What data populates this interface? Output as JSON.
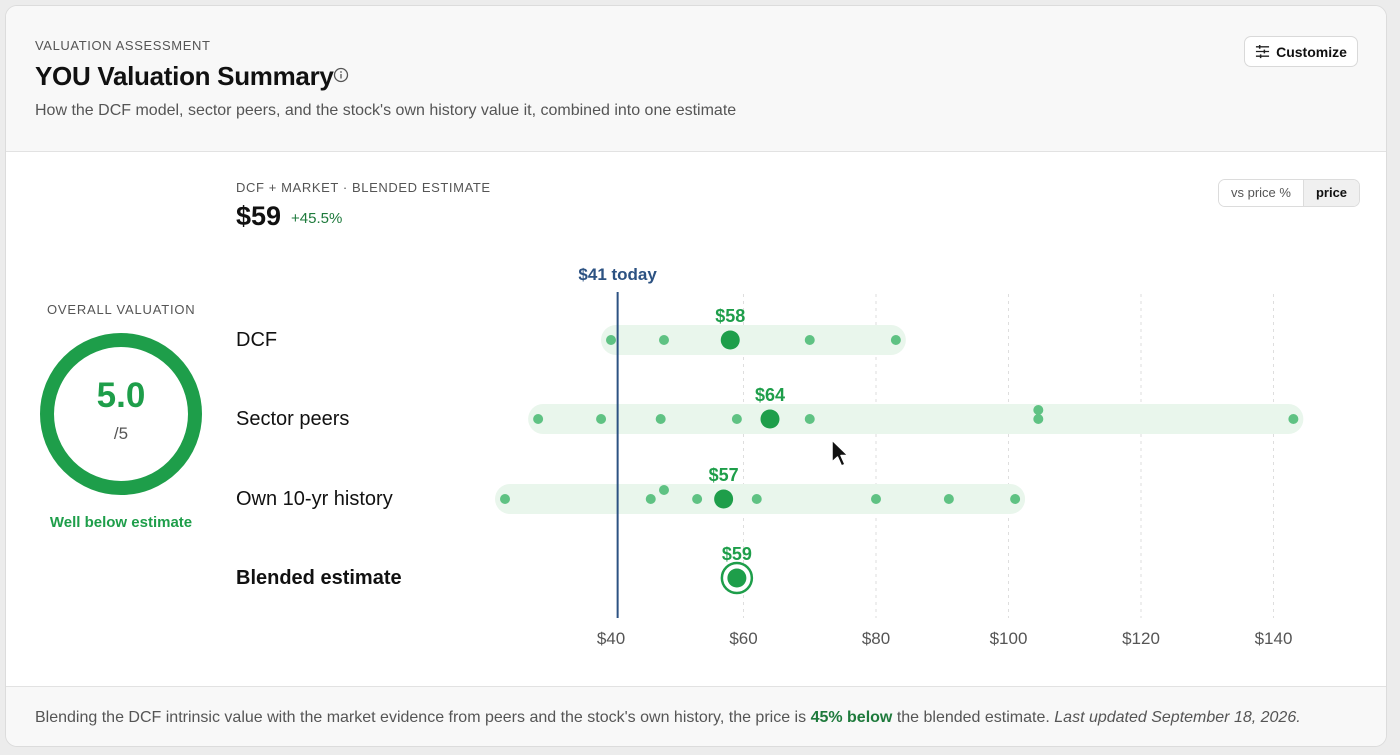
{
  "header": {
    "eyebrow": "VALUATION ASSESSMENT",
    "title": "YOU Valuation Summary",
    "subtitle": "How the DCF model, sector peers, and the stock's own history value it, combined into one estimate",
    "customize_label": "Customize",
    "customize_icon": "sliders-icon",
    "info_icon": "info-icon"
  },
  "gauge": {
    "label": "OVERALL VALUATION",
    "score": "5.0",
    "max": "/5",
    "score_fraction": 1.0,
    "verdict": "Well below estimate",
    "color": "#1e9e4a"
  },
  "blend": {
    "eyebrow": "DCF + MARKET · BLENDED ESTIMATE",
    "value": "$59",
    "change": "+45.5%"
  },
  "toggle": {
    "options": [
      "vs price %",
      "price"
    ],
    "selected": "price"
  },
  "colors": {
    "accent": "#1e9e4a",
    "band": "#e9f6ec",
    "dot": "#5fc283",
    "today_line": "#2c5282"
  },
  "chart_data": {
    "type": "scatter",
    "x_ticks": [
      40,
      60,
      80,
      100,
      120,
      140
    ],
    "x_tick_labels": [
      "$40",
      "$60",
      "$80",
      "$100",
      "$120",
      "$140"
    ],
    "today": {
      "value": 41,
      "label": "$41 today"
    },
    "rows": [
      {
        "label": "DCF",
        "range": [
          40,
          83
        ],
        "points": [
          40,
          48,
          70,
          83
        ],
        "estimate": 58,
        "estimate_label": "$58"
      },
      {
        "label": "Sector peers",
        "range": [
          29,
          143
        ],
        "points": [
          29,
          38.5,
          47.5,
          59,
          70,
          104.5,
          104.5,
          143
        ],
        "estimate": 64,
        "estimate_label": "$64"
      },
      {
        "label": "Own 10-yr history",
        "range": [
          24,
          101
        ],
        "points": [
          24,
          46,
          48,
          53,
          62,
          80,
          91,
          101
        ],
        "estimate": 57,
        "estimate_label": "$57"
      },
      {
        "label": "Blended estimate",
        "range": null,
        "points": [],
        "estimate": 59,
        "estimate_label": "$59",
        "bold": true
      }
    ]
  },
  "footer": {
    "text_before": "Blending the DCF intrinsic value with the market evidence from peers and the stock's own history, the price is ",
    "highlight": "45% below",
    "text_after": " the blended estimate. ",
    "updated": "Last updated September 18, 2026."
  }
}
